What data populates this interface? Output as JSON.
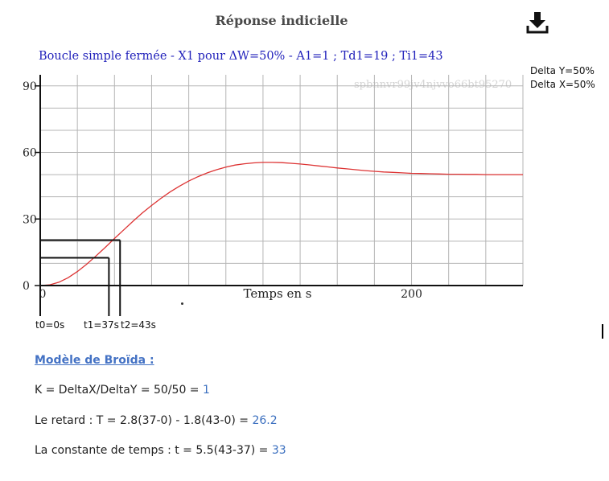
{
  "header": {
    "title": "Réponse indicielle",
    "download_icon": "download-icon"
  },
  "watermark": "spbnnvr99jv4njvvo66bt95270",
  "deltas": {
    "y": "Delta Y=50%",
    "x": "Delta X=50%"
  },
  "chart_data": {
    "type": "line",
    "title": "Boucle simple fermée - X1 pour ΔW=50% - A1=1 ; Td1=19 ; Ti1=43",
    "xlabel": "Temps en s",
    "ylabel": "",
    "xlim": [
      0,
      260
    ],
    "ylim": [
      0,
      95
    ],
    "x_ticks": [
      0,
      200
    ],
    "x_tick_labels": [
      "0",
      "200"
    ],
    "y_ticks": [
      0,
      30,
      60,
      90
    ],
    "y_tick_labels": [
      "0",
      "30",
      "60",
      "90"
    ],
    "grid": true,
    "line_color": "#dd3333",
    "series": [
      {
        "name": "",
        "x": [
          0,
          5,
          10,
          15,
          20,
          25,
          30,
          35,
          40,
          45,
          50,
          55,
          60,
          65,
          70,
          75,
          80,
          85,
          90,
          95,
          100,
          105,
          110,
          115,
          120,
          125,
          130,
          135,
          140,
          145,
          150,
          155,
          160,
          165,
          170,
          175,
          180,
          185,
          190,
          195,
          200,
          205,
          210,
          215,
          220,
          225,
          230,
          235,
          240,
          245,
          250,
          255,
          260
        ],
        "y": [
          0,
          0.3,
          1.5,
          3.5,
          6.3,
          9.6,
          13.3,
          17.2,
          21.2,
          25.1,
          29.0,
          32.7,
          36.1,
          39.3,
          42.2,
          44.8,
          47.1,
          49.1,
          50.8,
          52.2,
          53.4,
          54.3,
          54.9,
          55.3,
          55.5,
          55.5,
          55.4,
          55.1,
          54.8,
          54.4,
          53.9,
          53.5,
          53.0,
          52.6,
          52.2,
          51.8,
          51.5,
          51.2,
          51.0,
          50.8,
          50.6,
          50.5,
          50.4,
          50.3,
          50.2,
          50.2,
          50.1,
          50.1,
          50.0,
          50.0,
          50.0,
          50.0,
          50.0
        ]
      }
    ],
    "annotations": {
      "markers": [
        {
          "label": "t0=0s",
          "x": 0,
          "y": 0
        },
        {
          "label": "t1=37s",
          "x": 37,
          "y": 12.5
        },
        {
          "label": "t2=43s",
          "x": 43,
          "y": 20.5
        }
      ]
    }
  },
  "model": {
    "title": "Modèle de Broïda :",
    "lines": [
      {
        "text": "K = DeltaX/DeltaY = 50/50 = ",
        "result": "1"
      },
      {
        "text": "Le retard : T = 2.8(37-0) - 1.8(43-0) = ",
        "result": "26.2"
      },
      {
        "text": "La constante de temps : t = 5.5(43-37) = ",
        "result": "33"
      }
    ]
  }
}
